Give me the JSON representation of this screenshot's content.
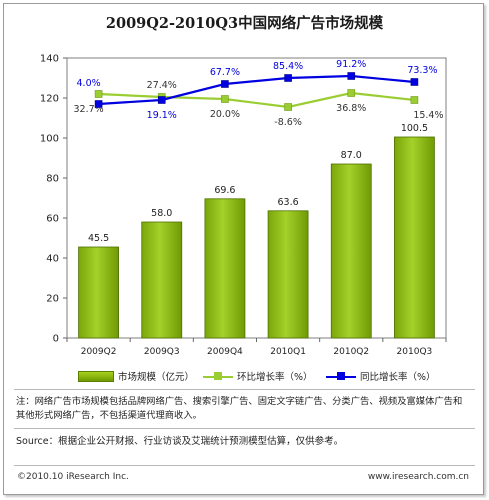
{
  "chart_data": {
    "type": "bar",
    "title": "2009Q2-2010Q3中国网络广告市场规模",
    "categories": [
      "2009Q2",
      "2009Q3",
      "2009Q4",
      "2010Q1",
      "2010Q2",
      "2010Q3"
    ],
    "ylim": [
      0,
      140
    ],
    "yticks": [
      0,
      20,
      40,
      60,
      80,
      100,
      120,
      140
    ],
    "grid": false,
    "legend_position": "bottom",
    "series": [
      {
        "name": "市场规模（亿元）",
        "kind": "bar",
        "values": [
          45.5,
          58.0,
          69.6,
          63.6,
          87.0,
          100.5
        ],
        "labels": [
          "45.5",
          "58.0",
          "69.6",
          "63.6",
          "87.0",
          "100.5"
        ],
        "color": "#8cb80f"
      },
      {
        "name": "环比增长率（%）",
        "kind": "line",
        "secondary_axis": true,
        "values": [
          32.7,
          27.4,
          20.0,
          -8.6,
          36.8,
          15.4
        ],
        "labels": [
          "32.7%",
          "27.4%",
          "20.0%",
          "-8.6%",
          "36.8%",
          "15.4%"
        ],
        "plot_y": [
          122,
          120.5,
          119.5,
          115.5,
          122.5,
          119
        ],
        "color": "#9acd32"
      },
      {
        "name": "同比增长率（%）",
        "kind": "line",
        "secondary_axis": true,
        "values": [
          4.0,
          19.1,
          67.7,
          85.4,
          91.2,
          73.3
        ],
        "labels": [
          "4.0%",
          "19.1%",
          "67.7%",
          "85.4%",
          "91.2%",
          "73.3%"
        ],
        "plot_y": [
          117,
          119,
          127,
          130,
          131,
          128
        ],
        "color": "#0000e0"
      }
    ]
  },
  "note": "注：网络广告市场规模包括品牌网络广告、搜索引擎广告、固定文字链广告、分类广告、视频及富媒体广告和其他形式网络广告，不包括渠道代理商收入。",
  "source": "Source：根据企业公开财报、行业访谈及艾瑞统计预测模型估算，仅供参考。",
  "footer": {
    "copyright": "©2010.10 iResearch Inc.",
    "url": "www.iresearch.com.cn"
  }
}
